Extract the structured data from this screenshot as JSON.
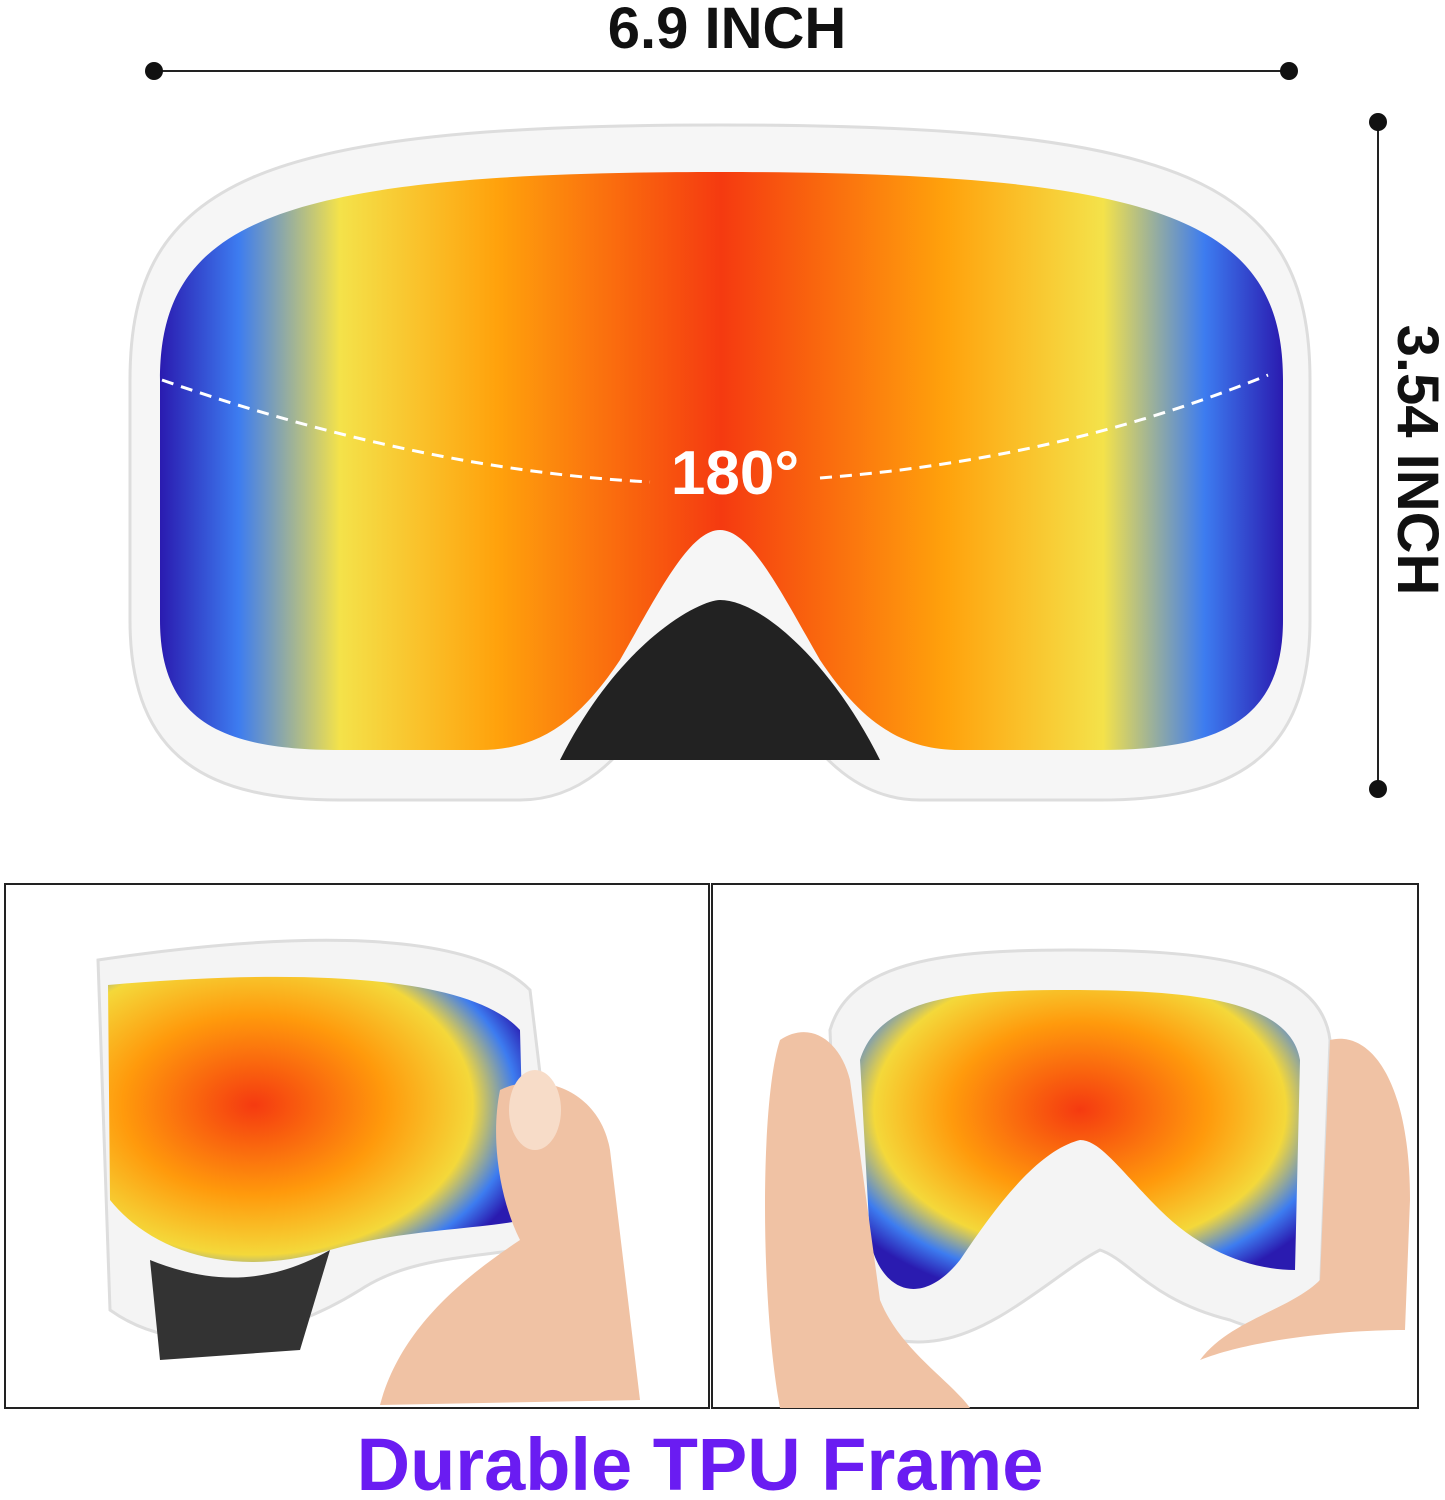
{
  "dimensions": {
    "width": "6.9 INCH",
    "height": "3.54 INCH"
  },
  "lens": {
    "field_of_view": "180°"
  },
  "caption": "Durable TPU Frame"
}
